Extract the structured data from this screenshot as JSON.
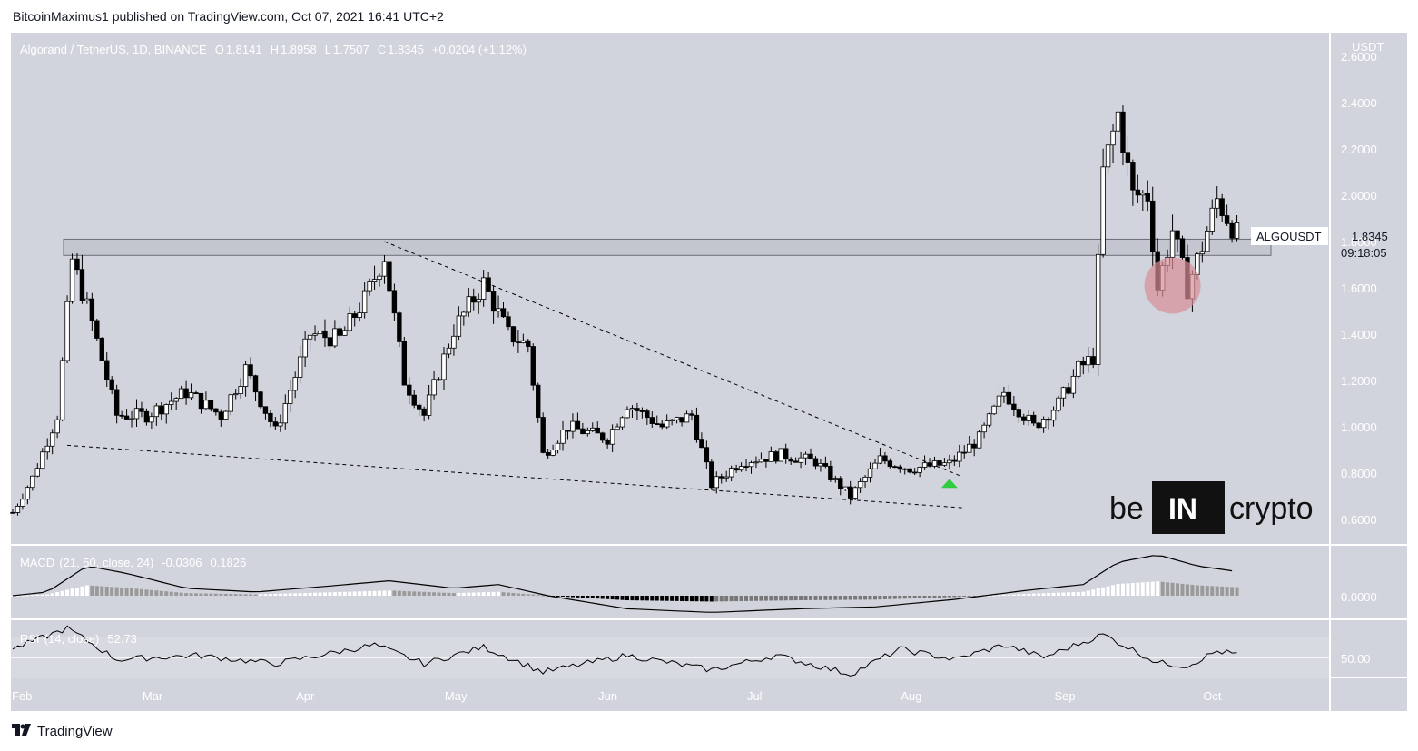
{
  "publisher_line": "BitcoinMaximus1 published on TradingView.com, Oct 07, 2021 16:41 UTC+2",
  "footer_brand": "TradingView",
  "watermark": {
    "left": "be",
    "box": "IN",
    "right": "crypto"
  },
  "colors": {
    "pane_bg": "#d1d4dc",
    "up_candle": "#ffffff",
    "down_candle": "#000000",
    "highlight": "#d88f97",
    "arrow": "#2ecc40",
    "line": "#000000"
  },
  "chart_data": [
    {
      "type": "candlestick",
      "symbol_line": "Algorand / TetherUS, 1D, BINANCE",
      "ohlc": {
        "o_label": "O",
        "o": "1.8141",
        "h_label": "H",
        "h": "1.8958",
        "l_label": "L",
        "l": "1.7507",
        "c_label": "C",
        "c": "1.8345",
        "change": "+0.0204 (+1.12%)"
      },
      "y_unit": "USDT",
      "y_ticks": [
        "2.6000",
        "2.4000",
        "2.2000",
        "2.0000",
        "1.8000",
        "1.6000",
        "1.4000",
        "1.2000",
        "1.0000",
        "0.8000",
        "0.6000"
      ],
      "ylim": [
        0.6,
        2.6
      ],
      "x_ticks": [
        "Feb",
        "Mar",
        "Apr",
        "May",
        "Jun",
        "Jul",
        "Aug",
        "Sep",
        "Oct"
      ],
      "price_tag": {
        "symbol": "ALGOUSDT",
        "price": "1.8345",
        "countdown": "09:18:05"
      },
      "resistance_zone": {
        "low": 1.74,
        "high": 1.81
      },
      "descending_resistance": [
        {
          "date": "2021-04-17",
          "price": 1.8
        },
        {
          "date": "2021-08-11",
          "price": 0.79
        }
      ],
      "support_line": [
        {
          "date": "2021-02-12",
          "price": 0.92
        },
        {
          "date": "2021-08-12",
          "price": 0.65
        }
      ],
      "breakout_marker": {
        "date": "2021-08-09",
        "price": 0.76
      },
      "retest_highlight": {
        "date": "2021-09-23",
        "price": 1.61
      },
      "closes": [
        {
          "date": "2021-02-01",
          "close": 0.63
        },
        {
          "date": "2021-02-05",
          "close": 0.78
        },
        {
          "date": "2021-02-10",
          "close": 1.05
        },
        {
          "date": "2021-02-13",
          "close": 1.72
        },
        {
          "date": "2021-02-17",
          "close": 1.45
        },
        {
          "date": "2021-02-22",
          "close": 1.05
        },
        {
          "date": "2021-02-28",
          "close": 1.05
        },
        {
          "date": "2021-03-08",
          "close": 1.15
        },
        {
          "date": "2021-03-15",
          "close": 1.05
        },
        {
          "date": "2021-03-20",
          "close": 1.25
        },
        {
          "date": "2021-03-26",
          "close": 0.98
        },
        {
          "date": "2021-04-02",
          "close": 1.4
        },
        {
          "date": "2021-04-08",
          "close": 1.38
        },
        {
          "date": "2021-04-13",
          "close": 1.55
        },
        {
          "date": "2021-04-17",
          "close": 1.74
        },
        {
          "date": "2021-04-21",
          "close": 1.2
        },
        {
          "date": "2021-04-25",
          "close": 1.05
        },
        {
          "date": "2021-05-01",
          "close": 1.42
        },
        {
          "date": "2021-05-07",
          "close": 1.62
        },
        {
          "date": "2021-05-12",
          "close": 1.4
        },
        {
          "date": "2021-05-16",
          "close": 1.35
        },
        {
          "date": "2021-05-19",
          "close": 0.88
        },
        {
          "date": "2021-05-24",
          "close": 1.0
        },
        {
          "date": "2021-06-01",
          "close": 0.95
        },
        {
          "date": "2021-06-05",
          "close": 1.1
        },
        {
          "date": "2021-06-12",
          "close": 1.0
        },
        {
          "date": "2021-06-18",
          "close": 1.05
        },
        {
          "date": "2021-06-22",
          "close": 0.75
        },
        {
          "date": "2021-06-28",
          "close": 0.85
        },
        {
          "date": "2021-07-06",
          "close": 0.88
        },
        {
          "date": "2021-07-13",
          "close": 0.85
        },
        {
          "date": "2021-07-20",
          "close": 0.7
        },
        {
          "date": "2021-07-26",
          "close": 0.86
        },
        {
          "date": "2021-08-01",
          "close": 0.82
        },
        {
          "date": "2021-08-09",
          "close": 0.84
        },
        {
          "date": "2021-08-15",
          "close": 0.95
        },
        {
          "date": "2021-08-20",
          "close": 1.15
        },
        {
          "date": "2021-08-26",
          "close": 1.0
        },
        {
          "date": "2021-08-31",
          "close": 1.1
        },
        {
          "date": "2021-09-04",
          "close": 1.25
        },
        {
          "date": "2021-09-07",
          "close": 1.3
        },
        {
          "date": "2021-09-09",
          "close": 2.1
        },
        {
          "date": "2021-09-12",
          "close": 2.35
        },
        {
          "date": "2021-09-15",
          "close": 2.0
        },
        {
          "date": "2021-09-18",
          "close": 2.0
        },
        {
          "date": "2021-09-20",
          "close": 1.6
        },
        {
          "date": "2021-09-23",
          "close": 1.85
        },
        {
          "date": "2021-09-26",
          "close": 1.6
        },
        {
          "date": "2021-09-29",
          "close": 1.78
        },
        {
          "date": "2021-10-02",
          "close": 1.98
        },
        {
          "date": "2021-10-06",
          "close": 1.83
        }
      ]
    },
    {
      "type": "line",
      "indicator": "MACD",
      "params": "(21, 50, close, 24)",
      "values_text": [
        "-0.0306",
        "0.1826"
      ],
      "y_ticks": [
        "0.0000"
      ],
      "macd_line": [
        {
          "date": "2021-02-01",
          "value": 0.0
        },
        {
          "date": "2021-02-08",
          "value": 0.02
        },
        {
          "date": "2021-02-16",
          "value": 0.16
        },
        {
          "date": "2021-02-24",
          "value": 0.12
        },
        {
          "date": "2021-03-08",
          "value": 0.04
        },
        {
          "date": "2021-03-22",
          "value": 0.02
        },
        {
          "date": "2021-04-05",
          "value": 0.05
        },
        {
          "date": "2021-04-18",
          "value": 0.08
        },
        {
          "date": "2021-05-01",
          "value": 0.04
        },
        {
          "date": "2021-05-10",
          "value": 0.06
        },
        {
          "date": "2021-05-20",
          "value": 0.0
        },
        {
          "date": "2021-06-05",
          "value": -0.07
        },
        {
          "date": "2021-06-22",
          "value": -0.09
        },
        {
          "date": "2021-07-10",
          "value": -0.07
        },
        {
          "date": "2021-07-25",
          "value": -0.06
        },
        {
          "date": "2021-08-10",
          "value": -0.02
        },
        {
          "date": "2021-08-25",
          "value": 0.03
        },
        {
          "date": "2021-09-05",
          "value": 0.06
        },
        {
          "date": "2021-09-12",
          "value": 0.18
        },
        {
          "date": "2021-09-20",
          "value": 0.22
        },
        {
          "date": "2021-09-28",
          "value": 0.16
        },
        {
          "date": "2021-10-06",
          "value": 0.13
        }
      ]
    },
    {
      "type": "line",
      "indicator": "RSI",
      "params": "(14, close)",
      "value_text": "52.73",
      "y_ticks": [
        "50.00"
      ],
      "rsi_line": [
        {
          "date": "2021-02-01",
          "value": 58
        },
        {
          "date": "2021-02-12",
          "value": 78
        },
        {
          "date": "2021-02-22",
          "value": 48
        },
        {
          "date": "2021-03-10",
          "value": 52
        },
        {
          "date": "2021-03-26",
          "value": 44
        },
        {
          "date": "2021-04-15",
          "value": 62
        },
        {
          "date": "2021-04-25",
          "value": 44
        },
        {
          "date": "2021-05-07",
          "value": 60
        },
        {
          "date": "2021-05-19",
          "value": 36
        },
        {
          "date": "2021-06-05",
          "value": 52
        },
        {
          "date": "2021-06-22",
          "value": 38
        },
        {
          "date": "2021-07-05",
          "value": 52
        },
        {
          "date": "2021-07-20",
          "value": 34
        },
        {
          "date": "2021-07-30",
          "value": 58
        },
        {
          "date": "2021-08-10",
          "value": 48
        },
        {
          "date": "2021-08-20",
          "value": 62
        },
        {
          "date": "2021-08-28",
          "value": 50
        },
        {
          "date": "2021-09-09",
          "value": 72
        },
        {
          "date": "2021-09-20",
          "value": 45
        },
        {
          "date": "2021-09-26",
          "value": 42
        },
        {
          "date": "2021-10-02",
          "value": 56
        },
        {
          "date": "2021-10-06",
          "value": 53
        }
      ]
    }
  ]
}
